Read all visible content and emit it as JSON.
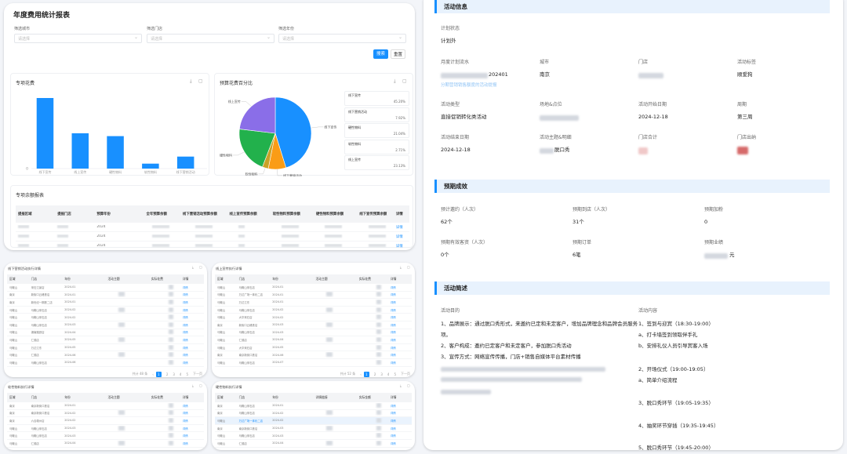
{
  "report": {
    "title": "年度费用统计报表",
    "filters": [
      {
        "label": "筛选城市",
        "placeholder": "请选择"
      },
      {
        "label": "筛选门店",
        "placeholder": "请选择"
      },
      {
        "label": "筛选年份",
        "placeholder": "请选择"
      }
    ],
    "search_label": "搜索",
    "reset_label": "重置"
  },
  "bar_panel": {
    "title": "专项花费"
  },
  "pie_panel": {
    "title": "预算花费百分比"
  },
  "chart_data": [
    {
      "type": "bar",
      "categories": [
        "线下宣传",
        "线上宣传",
        "硬性物料",
        "软性物料",
        "线下营销活动"
      ],
      "values": [
        100,
        50,
        46,
        7,
        17
      ],
      "ylim": [
        0,
        110
      ],
      "ytick_labels": [
        "0"
      ],
      "color": "#1890ff"
    },
    {
      "type": "pie",
      "labels": [
        "线下宣传",
        "线下营销活动",
        "软性物料",
        "硬性物料",
        "线上宣传"
      ],
      "values": [
        45.2,
        7.92,
        2.71,
        21.04,
        23.13
      ],
      "percent_labels": [
        "45.20%",
        "7.92%",
        "2.71%",
        "21.04%",
        "23.13%"
      ],
      "colors": [
        "#1890ff",
        "#fa9c16",
        "#c9a227",
        "#22b14c",
        "#8a6ee8"
      ],
      "legend": {
        "position": "right",
        "cards": [
          {
            "name": "线下宣传",
            "pct": "45.20%"
          },
          {
            "name": "线下营销活动",
            "pct": "7.92%"
          },
          {
            "name": "硬性物料",
            "pct": "21.04%"
          },
          {
            "name": "软性物料",
            "pct": "2.71%"
          },
          {
            "name": "线上宣传",
            "pct": "23.13%"
          }
        ]
      }
    }
  ],
  "remain": {
    "title": "专项余额报表",
    "headers": [
      "提报区域",
      "提报门店",
      "预算年份",
      "全年预算余额",
      "线下营销活动预算余额",
      "线上宣传预算余额",
      "软性物料预算余额",
      "硬性物料预算余额",
      "线下宣传预算余额",
      "详情"
    ],
    "rows": [
      {
        "year": "2024",
        "detail": "详情"
      },
      {
        "year": "2024",
        "detail": "详情"
      },
      {
        "year": "2024",
        "detail": "详情"
      }
    ]
  },
  "mini_tables": [
    {
      "title": "线下营销活动执行详情",
      "headers": [
        "区域",
        "门店",
        "年份",
        "活动主题",
        "实际花费",
        "详情"
      ],
      "rows": [
        {
          "region": "马鞍山",
          "store": "采石江景店",
          "year": "2024-01",
          "detail": "详情"
        },
        {
          "region": "南京",
          "store": "新街口云峰铁店",
          "year": "2024-01",
          "detail": "详情"
        },
        {
          "region": "南京",
          "store": "新世纪一期铁二店",
          "year": "2024-01",
          "detail": "详情"
        },
        {
          "region": "马鞍山",
          "store": "马鞍山采石店",
          "year": "2024-02",
          "detail": "详情"
        },
        {
          "region": "马鞍山",
          "store": "马鞍山采石店",
          "year": "2024-02",
          "detail": "详情"
        },
        {
          "region": "马鞍山",
          "store": "马鞍山采石店",
          "year": "2024-03",
          "detail": "详情"
        },
        {
          "region": "马鞍山",
          "store": "湖南路铁店",
          "year": "2024-04",
          "detail": "详情"
        },
        {
          "region": "马鞍山",
          "store": "仁德店",
          "year": "2024-05",
          "detail": "详情"
        },
        {
          "region": "马鞍山",
          "store": "万达江东",
          "year": "2024-05",
          "detail": "详情"
        },
        {
          "region": "马鞍山",
          "store": "仁德店",
          "year": "2024-06",
          "detail": "详情"
        },
        {
          "region": "马鞍山",
          "store": "马鞍山采石店",
          "year": "2024-06",
          "detail": "详情"
        }
      ],
      "pager": {
        "total": "共计 48 条",
        "pages": [
          "1",
          "2",
          "3",
          "4",
          "5"
        ],
        "next": "下一页"
      }
    },
    {
      "title": "线上宣传执行详情",
      "headers": [
        "区域",
        "门店",
        "年份",
        "活动主题",
        "实际花费",
        "详情"
      ],
      "rows": [
        {
          "region": "马鞍山",
          "store": "马鞍山采石店",
          "year": "2024-01",
          "detail": "详情"
        },
        {
          "region": "马鞍山",
          "store": "万达广场一体化二店",
          "year": "2024-01",
          "detail": "详情"
        },
        {
          "region": "马鞍山",
          "store": "万达江东",
          "year": "2024-01",
          "detail": "详情"
        },
        {
          "region": "马鞍山",
          "store": "马鞍山采石店",
          "year": "2024-02",
          "detail": "详情"
        },
        {
          "region": "马鞍山",
          "store": "大华采石店",
          "year": "2024-02",
          "detail": "详情"
        },
        {
          "region": "南京",
          "store": "新街口云峰铁店",
          "year": "2024-03",
          "detail": "详情"
        },
        {
          "region": "马鞍山",
          "store": "马鞍山采石店",
          "year": "2024-03",
          "detail": "详情"
        },
        {
          "region": "马鞍山",
          "store": "仁德店",
          "year": "2024-04",
          "detail": "详情"
        },
        {
          "region": "马鞍山",
          "store": "大华采石店",
          "year": "2024-05",
          "detail": "详情"
        },
        {
          "region": "南京",
          "store": "南京新街口铁店",
          "year": "2024-06",
          "detail": "详情"
        },
        {
          "region": "马鞍山",
          "store": "马鞍山采石店",
          "year": "2024-07",
          "detail": "详情"
        }
      ],
      "pager": {
        "total": "共计 52 条",
        "pages": [
          "1",
          "2",
          "3",
          "4",
          "5"
        ],
        "next": "下一页"
      }
    },
    {
      "title": "软性物料执行详情",
      "headers": [
        "区域",
        "门店",
        "年份",
        "活动主题",
        "实际花费",
        "详情"
      ],
      "rows": [
        {
          "region": "南京",
          "store": "南京新街口铁店",
          "year": "2024-01",
          "detail": "详情"
        },
        {
          "region": "南京",
          "store": "南京新街口铁店",
          "year": "2024-02",
          "detail": "详情"
        },
        {
          "region": "南京",
          "store": "六合雄州店",
          "year": "2024-02",
          "detail": "详情"
        },
        {
          "region": "马鞍山",
          "store": "马鞍山采石店",
          "year": "2024-03",
          "detail": "详情"
        },
        {
          "region": "马鞍山",
          "store": "马鞍山采石店",
          "year": "2024-03",
          "detail": "详情"
        },
        {
          "region": "马鞍山",
          "store": "仁德店",
          "year": "2024-04",
          "detail": "详情"
        }
      ]
    },
    {
      "title": "硬性物料执行详情",
      "headers": [
        "区域",
        "门店",
        "年份",
        "详情链接",
        "实际金额",
        "详情"
      ],
      "rows": [
        {
          "region": "南京",
          "store": "马鞍山采石店",
          "year": "2024-01",
          "detail": "详情"
        },
        {
          "region": "南京",
          "store": "马鞍山采石店",
          "year": "2024-02",
          "detail": "详情"
        },
        {
          "region": "马鞍山",
          "store": "万达广场一体化二店",
          "year": "2024-02",
          "detail": "详情"
        },
        {
          "region": "南京",
          "store": "南京新街口铁店",
          "year": "2024-03",
          "detail": "详情"
        },
        {
          "region": "马鞍山",
          "store": "马鞍山采石店",
          "year": "2024-03",
          "detail": "详情"
        },
        {
          "region": "马鞍山",
          "store": "仁德店",
          "year": "2024-04",
          "detail": "详情"
        }
      ]
    }
  ],
  "detail": {
    "activity_info_title": "活动信息",
    "plan_status_label": "计划状态",
    "plan_status_value": "计划外",
    "monthly_label": "月度计划流水",
    "monthly_value_suffix": "202401",
    "monthly_link": "分期营销销售额度的活动提报",
    "city_label": "城市",
    "city_value": "南京",
    "store_label": "门店",
    "tag_label": "活动标签",
    "tag_value": "顺爱狗",
    "type_label": "活动类型",
    "type_value": "直接促销转化类活动",
    "site_label": "场地&点位",
    "start_label": "活动开始日期",
    "start_value": "2024-12-18",
    "week_label": "周期",
    "week_value": "第三周",
    "end_label": "活动结束日期",
    "end_value": "2024-12-18",
    "theme_label": "活动主题&明细",
    "theme_value_suffix": "脱口秀",
    "total_label": "门店合计",
    "staff_label": "门店出纳",
    "expect_title": "预期成效",
    "expect_invite_label": "预计邀约（人次）",
    "expect_invite_value": "62个",
    "expect_arrive_label": "预期到店（人次）",
    "expect_arrive_value": "31个",
    "expect_add_label": "预期加粉",
    "expect_add_value": "0",
    "expect_eff_label": "预期有效客资（人次）",
    "expect_eff_value": "0个",
    "expect_order_label": "预期订单",
    "expect_order_value": "6笔",
    "expect_perf_label": "预期业绩",
    "expect_perf_suffix": "元",
    "desc_title": "活动简述",
    "purpose_label": "活动目的",
    "purpose_lines": [
      "1、品牌展示：通过脱口秀形式，来邀约已定和未定客户，增加品牌理念和品牌会员服务",
      "项。",
      "2、客户构成：邀约已定客户和未定客户，参加脱口秀活动",
      "3、宣传方式：网络宣传传播，门店+销售自媒体平台素材传播"
    ],
    "content_label": "活动内容",
    "content_lines": [
      "1、签到与迎宾（18:30-19:00）",
      "a、打卡墙签到领取伴手礼",
      "b、安排礼仪人员引导宾客入场",
      "2、开场仪式（19:00-19:05）",
      "a、简单介绍流程",
      "3、脱口秀环节（19:05-19:35）",
      "4、抽奖环节穿插（19:35-19:45）",
      "5、脱口秀环节（19:45-20:00）"
    ]
  }
}
